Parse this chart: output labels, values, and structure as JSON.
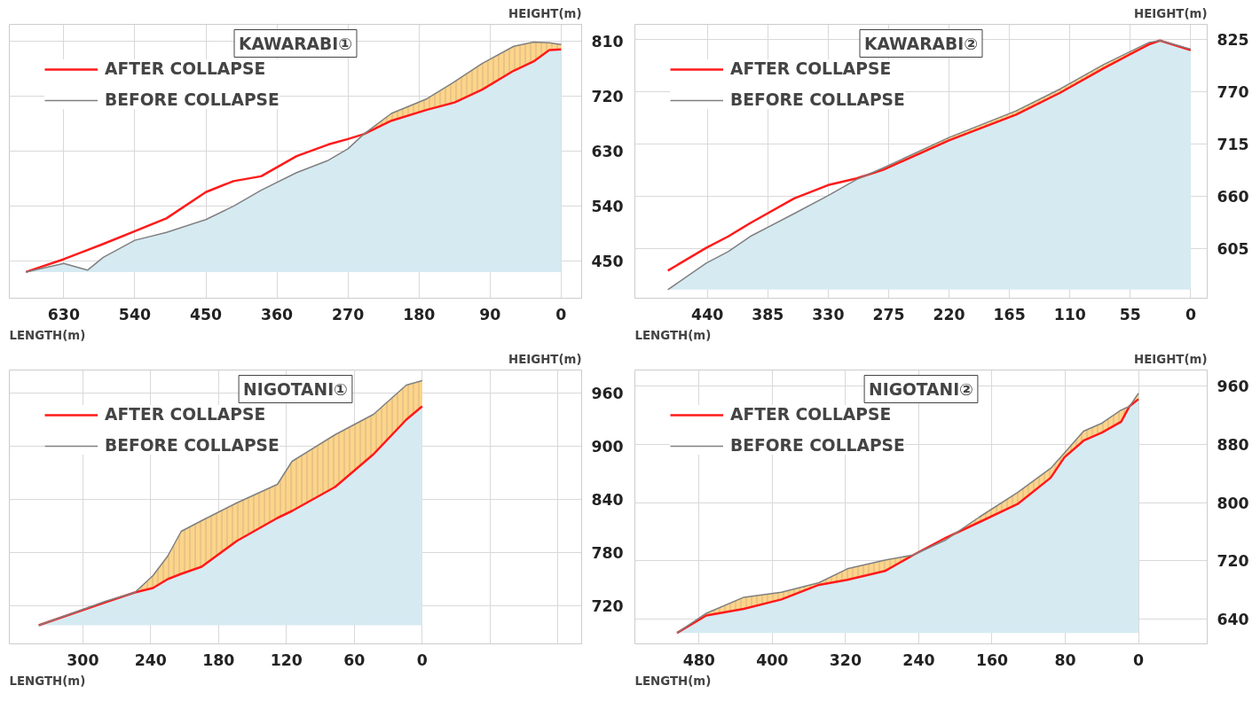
{
  "chart_data": [
    {
      "type": "line",
      "title": "KAWARABI①",
      "xlabel": "LENGTH(m)",
      "ylabel": "HEIGHT(m)",
      "legend": "top left",
      "grid": true,
      "x": [
        678,
        630,
        600,
        580,
        540,
        500,
        450,
        415,
        380,
        335,
        295,
        270,
        250,
        215,
        170,
        135,
        100,
        60,
        35,
        15,
        0
      ],
      "xlim": [
        699,
        -26
      ],
      "xticks": [
        630,
        540,
        450,
        360,
        270,
        180,
        90,
        0
      ],
      "ylim": [
        389,
        838
      ],
      "yticks": [
        450,
        540,
        630,
        720,
        810
      ],
      "series": [
        {
          "name": "AFTER COLLAPSE",
          "color": "#ff1a1a",
          "values": [
            432,
            453,
            468,
            478,
            499,
            520,
            563,
            581,
            589,
            622,
            641,
            650,
            658,
            680,
            698,
            710,
            731,
            762,
            777,
            796,
            797
          ]
        },
        {
          "name": "BEFORE COLLAPSE",
          "color": "#808080",
          "values": [
            432,
            446,
            435,
            456,
            484,
            497,
            518,
            540,
            566,
            595,
            615,
            634,
            658,
            692,
            716,
            744,
            774,
            802,
            809,
            808,
            805
          ],
          "upper": [
            432,
            446,
            435,
            456,
            484,
            497,
            518,
            540,
            566,
            595,
            615,
            634,
            658,
            692,
            716,
            744,
            774,
            802,
            809,
            808,
            805
          ],
          "lower": [
            432,
            446,
            435,
            456,
            484,
            497,
            518,
            540,
            566,
            595,
            615,
            634,
            658,
            680,
            698,
            710,
            731,
            762,
            777,
            796,
            797
          ]
        }
      ]
    },
    {
      "type": "line",
      "title": "KAWARABI②",
      "xlabel": "LENGTH(m)",
      "ylabel": "HEIGHT(m)",
      "legend": "top left",
      "grid": true,
      "x": [
        476,
        441,
        421,
        401,
        361,
        330,
        304,
        280,
        220,
        159,
        119,
        79,
        38,
        28,
        0
      ],
      "xlim": [
        506,
        -15
      ],
      "xticks": [
        440,
        385,
        330,
        275,
        220,
        165,
        110,
        55,
        0
      ],
      "ylim": [
        553,
        841
      ],
      "yticks": [
        605,
        660,
        715,
        770,
        825
      ],
      "series": [
        {
          "name": "AFTER COLLAPSE",
          "color": "#ff1a1a",
          "values": [
            582,
            606,
            618,
            632,
            658,
            672,
            679,
            688,
            719,
            746,
            769,
            795,
            820,
            824,
            814
          ]
        },
        {
          "name": "BEFORE COLLAPSE",
          "color": "#808080",
          "values": [
            562,
            590,
            602,
            618,
            642,
            661,
            678,
            690,
            722,
            750,
            773,
            799,
            822,
            824,
            815
          ],
          "upper": [
            562,
            590,
            602,
            618,
            642,
            661,
            678,
            690,
            722,
            750,
            773,
            799,
            822,
            824,
            815
          ],
          "lower": [
            562,
            590,
            602,
            618,
            642,
            661,
            678,
            688,
            719,
            746,
            769,
            795,
            820,
            824,
            814
          ]
        }
      ]
    },
    {
      "type": "line",
      "title": "NIGOTANI①",
      "xlabel": "LENGTH(m)",
      "ylabel": "HEIGHT(m)",
      "legend": "top left",
      "grid": true,
      "x": [
        339,
        280,
        254,
        238,
        225,
        213,
        195,
        164,
        128,
        115,
        77,
        43,
        14,
        0
      ],
      "xlim": [
        365,
        -141
      ],
      "xticks": [
        300,
        240,
        180,
        120,
        60,
        0,
        {
          "value": -60,
          "label": null
        },
        {
          "value": -120,
          "label": null
        }
      ],
      "ylim": [
        677,
        986
      ],
      "yticks": [
        720,
        780,
        840,
        900,
        960
      ],
      "series": [
        {
          "name": "AFTER COLLAPSE",
          "color": "#ff1a1a",
          "values": [
            698,
            724,
            735,
            740,
            750,
            756,
            764,
            793,
            819,
            827,
            854,
            891,
            930,
            945
          ]
        },
        {
          "name": "BEFORE COLLAPSE",
          "color": "#808080",
          "values": [
            698,
            725,
            735,
            754,
            776,
            804,
            816,
            836,
            857,
            883,
            913,
            936,
            969,
            974
          ],
          "upper": [
            698,
            725,
            735,
            754,
            776,
            804,
            816,
            836,
            857,
            883,
            913,
            936,
            969,
            974
          ],
          "lower": [
            698,
            724,
            735,
            740,
            750,
            756,
            764,
            793,
            819,
            827,
            854,
            891,
            930,
            945
          ]
        }
      ]
    },
    {
      "type": "line",
      "title": "NIGOTANI②",
      "xlabel": "LENGTH(m)",
      "ylabel": "HEIGHT(m)",
      "legend": "top left",
      "grid": true,
      "x": [
        504,
        472,
        431,
        390,
        349,
        318,
        277,
        246,
        210,
        174,
        132,
        96,
        81,
        60,
        40,
        19,
        10,
        0
      ],
      "xlim": [
        550,
        -75
      ],
      "xticks": [
        480,
        400,
        320,
        240,
        160,
        80,
        0
      ],
      "ylim": [
        606,
        982
      ],
      "yticks": [
        640,
        720,
        800,
        880,
        960
      ],
      "series": [
        {
          "name": "AFTER COLLAPSE",
          "color": "#ff1a1a",
          "values": [
            621,
            645,
            654,
            667,
            687,
            694,
            706,
            728,
            752,
            773,
            798,
            834,
            862,
            885,
            896,
            911,
            932,
            942
          ]
        },
        {
          "name": "BEFORE COLLAPSE",
          "color": "#808080",
          "values": [
            621,
            648,
            670,
            677,
            690,
            709,
            721,
            728,
            749,
            780,
            814,
            847,
            868,
            898,
            909,
            927,
            932,
            950
          ],
          "upper": [
            621,
            648,
            670,
            677,
            690,
            709,
            721,
            728,
            749,
            780,
            814,
            847,
            868,
            898,
            909,
            927,
            932,
            950
          ],
          "lower": [
            621,
            645,
            654,
            667,
            687,
            694,
            706,
            728,
            749,
            773,
            798,
            834,
            862,
            885,
            896,
            911,
            932,
            942
          ]
        }
      ]
    }
  ]
}
